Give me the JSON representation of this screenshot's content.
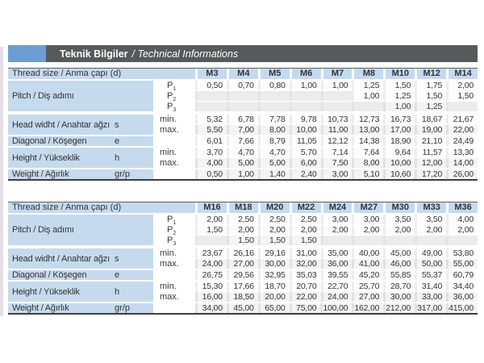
{
  "header": {
    "title_tr": "Teknik Bilgiler",
    "title_en": "/ Technical Informations"
  },
  "colors": {
    "accent_blue": "#6c9cd2",
    "bar_gray": "#58595b",
    "label_blue": "#c6daee"
  },
  "row_labels": {
    "thread": "Thread size / Anma çapı (d)",
    "pitch": "Pitch / Diş adımı",
    "head_width": "Head widht / Anahtar ağzı",
    "head_width_symbol": "s",
    "diagonal": "Diagonal / Köşegen",
    "diagonal_symbol": "e",
    "height": "Height / Yükseklik",
    "height_symbol": "h",
    "weight": "Weight / Ağırlık",
    "weight_symbol": "gr/p",
    "min": "min.",
    "max": "max.",
    "p_labels": [
      {
        "base": "P",
        "sub": "1"
      },
      {
        "base": "P",
        "sub": "2"
      },
      {
        "base": "P",
        "sub": "3"
      }
    ]
  },
  "tables": [
    {
      "sizes": [
        "M3",
        "M4",
        "M5",
        "M6",
        "M7",
        "M8",
        "M10",
        "M12",
        "M14"
      ],
      "p1": [
        "0,50",
        "0,70",
        "0,80",
        "1,00",
        "1,00",
        "1,25",
        "1,50",
        "1,75",
        "2,00"
      ],
      "p2": [
        "",
        "",
        "",
        "",
        "",
        "1,00",
        "1,25",
        "1,50",
        "1,50"
      ],
      "p3": [
        "",
        "",
        "",
        "",
        "",
        "",
        "1,00",
        "1,25",
        ""
      ],
      "s_min": [
        "5,32",
        "6,78",
        "7,78",
        "9,78",
        "10,73",
        "12,73",
        "16,73",
        "18,67",
        "21,67"
      ],
      "s_max": [
        "5,50",
        "7,00",
        "8,00",
        "10,00",
        "11,00",
        "13,00",
        "17,00",
        "19,00",
        "22,00"
      ],
      "e": [
        "6,01",
        "7,66",
        "8,79",
        "11,05",
        "12,12",
        "14,38",
        "18,90",
        "21,10",
        "24,49"
      ],
      "h_min": [
        "3,70",
        "4,70",
        "4,70",
        "5,70",
        "7,14",
        "7,64",
        "9,64",
        "11,57",
        "13,30"
      ],
      "h_max": [
        "4,00",
        "5,00",
        "5,00",
        "6,00",
        "7,50",
        "8,00",
        "10,00",
        "12,00",
        "14,00"
      ],
      "weight": [
        "0,50",
        "1,00",
        "1,40",
        "2,40",
        "3,00",
        "5,10",
        "10,60",
        "17,20",
        "26,00"
      ]
    },
    {
      "sizes": [
        "M16",
        "M18",
        "M20",
        "M22",
        "M24",
        "M27",
        "M30",
        "M33",
        "M36"
      ],
      "p1": [
        "2,00",
        "2,50",
        "2,50",
        "2,50",
        "3,00",
        "3,00",
        "3,50",
        "3,50",
        "4,00"
      ],
      "p2": [
        "1,50",
        "2,00",
        "2,00",
        "2,00",
        "2,00",
        "2,00",
        "2,00",
        "2,00",
        "2,00"
      ],
      "p3": [
        "",
        "1,50",
        "1,50",
        "1,50",
        "",
        "",
        "",
        "",
        ""
      ],
      "s_min": [
        "23,67",
        "26,16",
        "29,16",
        "31,00",
        "35,00",
        "40,00",
        "45,00",
        "49,00",
        "53,80"
      ],
      "s_max": [
        "24,00",
        "27,00",
        "30,00",
        "32,00",
        "36,00",
        "41,00",
        "46,00",
        "50,00",
        "55,00"
      ],
      "e": [
        "26,75",
        "29,56",
        "32,95",
        "35,03",
        "39,55",
        "45,20",
        "55,85",
        "55,37",
        "60,79"
      ],
      "h_min": [
        "15,30",
        "17,66",
        "18,70",
        "20,70",
        "22,70",
        "25,70",
        "28,70",
        "31,40",
        "34,40"
      ],
      "h_max": [
        "16,00",
        "18,50",
        "20,00",
        "22,00",
        "24,00",
        "27,00",
        "30,00",
        "33,00",
        "36,00"
      ],
      "weight": [
        "34,00",
        "45,00",
        "65,00",
        "75,00",
        "100,00",
        "162,00",
        "212,00",
        "317,00",
        "415,00"
      ]
    }
  ]
}
